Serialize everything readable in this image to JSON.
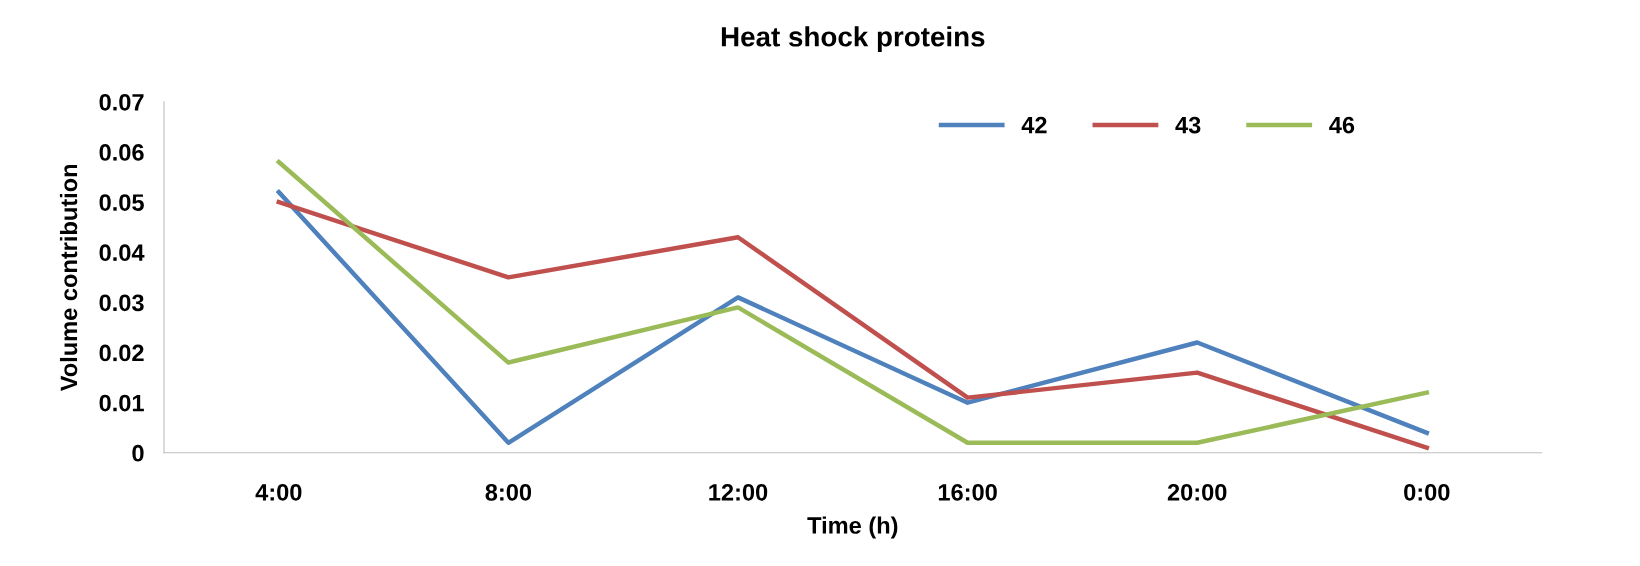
{
  "chart_data": {
    "type": "line",
    "title": "Heat shock proteins",
    "xlabel": "Time (h)",
    "ylabel": "Volume contribution",
    "categories": [
      "4:00",
      "8:00",
      "12:00",
      "16:00",
      "20:00",
      "0:00"
    ],
    "series": [
      {
        "name": "42",
        "color": "#4f81bd",
        "values": [
          0.052,
          0.002,
          0.031,
          0.01,
          0.022,
          0.004
        ]
      },
      {
        "name": "43",
        "color": "#c0504d",
        "values": [
          0.05,
          0.035,
          0.043,
          0.011,
          0.016,
          0.001
        ]
      },
      {
        "name": "46",
        "color": "#9bbb59",
        "values": [
          0.058,
          0.018,
          0.029,
          0.002,
          0.002,
          0.012
        ]
      }
    ],
    "ylim": [
      0,
      0.07
    ],
    "yticks": [
      0,
      0.01,
      0.02,
      0.03,
      0.04,
      0.05,
      0.06,
      0.07
    ],
    "grid": false,
    "legend": "top right",
    "marker": "none",
    "line_style": "solid"
  }
}
